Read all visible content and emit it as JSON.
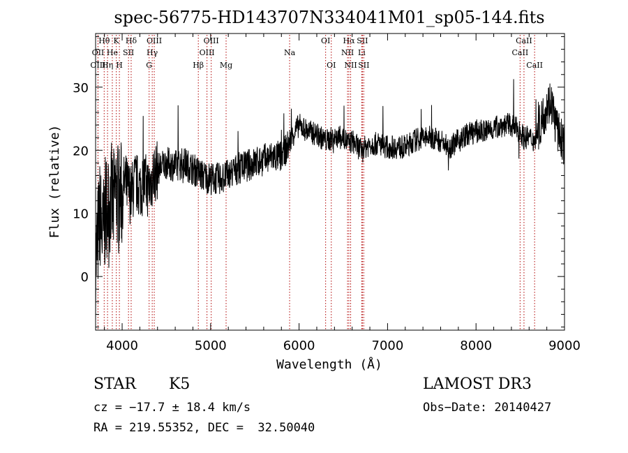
{
  "chart_data": {
    "type": "line",
    "title": "spec-56775-HD143707N334041M01_sp05-144.fits",
    "xlabel": "Wavelength (Å)",
    "ylabel": "Flux (relative)",
    "xlim": [
      3700,
      9000
    ],
    "ylim": [
      -8.5,
      38.5
    ],
    "xticks": [
      4000,
      5000,
      6000,
      7000,
      8000,
      9000
    ],
    "xtick_labels": [
      "4000",
      "5000",
      "6000",
      "7000",
      "8000",
      "9000"
    ],
    "yticks": [
      0,
      10,
      20,
      30
    ],
    "ytick_labels": [
      "0",
      "10",
      "20",
      "30"
    ],
    "grid": false,
    "series": [
      {
        "name": "spectrum",
        "x": [
          3700,
          3750,
          3780,
          3800,
          3830,
          3850,
          3870,
          3900,
          3930,
          3960,
          4000,
          4030,
          4060,
          4100,
          4150,
          4200,
          4250,
          4300,
          4350,
          4400,
          4500,
          4600,
          4700,
          4800,
          4860,
          4900,
          5000,
          5100,
          5200,
          5300,
          5400,
          5500,
          5600,
          5700,
          5800,
          5890,
          5950,
          6000,
          6100,
          6200,
          6300,
          6400,
          6500,
          6563,
          6600,
          6700,
          6800,
          6900,
          7000,
          7100,
          7200,
          7300,
          7400,
          7500,
          7600,
          7700,
          7800,
          7900,
          8000,
          8100,
          8200,
          8300,
          8400,
          8500,
          8540,
          8600,
          8662,
          8700,
          8750,
          8800,
          8850,
          8900,
          8950,
          9000
        ],
        "y": [
          2,
          10,
          6,
          9,
          12,
          10,
          13,
          11,
          14,
          12,
          13,
          15,
          14,
          13,
          15,
          14,
          15,
          14,
          16,
          17,
          18,
          17.5,
          18,
          17,
          16.5,
          16,
          15.5,
          15.5,
          16,
          17,
          17.5,
          18,
          18.5,
          19,
          19,
          21,
          23,
          24,
          23,
          22.5,
          21.5,
          22,
          22,
          21,
          21.5,
          20,
          21,
          21,
          20.5,
          20.5,
          20.5,
          21.5,
          22,
          22,
          21.5,
          20.5,
          21.5,
          22.5,
          23,
          23,
          23.5,
          24,
          24,
          23,
          22,
          22,
          21.5,
          23,
          25,
          27,
          28,
          24,
          22,
          21
        ]
      }
    ],
    "line_markers": [
      {
        "label": "Hθ",
        "wavelength": 3797,
        "row": 1
      },
      {
        "label": "K",
        "wavelength": 3934,
        "row": 1
      },
      {
        "label": "Hδ",
        "wavelength": 4102,
        "row": 1
      },
      {
        "label": "OIII",
        "wavelength": 4363,
        "row": 1
      },
      {
        "label": "OIII",
        "wavelength": 5007,
        "row": 1
      },
      {
        "label": "OI",
        "wavelength": 6300,
        "row": 1
      },
      {
        "label": "Hα",
        "wavelength": 6563,
        "row": 1
      },
      {
        "label": "SII",
        "wavelength": 6716,
        "row": 1
      },
      {
        "label": "CaII",
        "wavelength": 8542,
        "row": 1
      },
      {
        "label": "OII",
        "wavelength": 3727,
        "row": 2
      },
      {
        "label": "He",
        "wavelength": 3889,
        "row": 2
      },
      {
        "label": "SII",
        "wavelength": 4072,
        "row": 2
      },
      {
        "label": "Hγ",
        "wavelength": 4340,
        "row": 2
      },
      {
        "label": "OIII",
        "wavelength": 4959,
        "row": 2
      },
      {
        "label": "Na",
        "wavelength": 5893,
        "row": 2
      },
      {
        "label": "NII",
        "wavelength": 6548,
        "row": 2
      },
      {
        "label": "Li",
        "wavelength": 6708,
        "row": 2
      },
      {
        "label": "CaII",
        "wavelength": 8498,
        "row": 2
      },
      {
        "label": "OIII",
        "wavelength": 3727,
        "row": 3
      },
      {
        "label": "Hη",
        "wavelength": 3835,
        "row": 3
      },
      {
        "label": "H",
        "wavelength": 3969,
        "row": 3
      },
      {
        "label": "G",
        "wavelength": 4305,
        "row": 3
      },
      {
        "label": "Hβ",
        "wavelength": 4861,
        "row": 3
      },
      {
        "label": "Mg",
        "wavelength": 5175,
        "row": 3
      },
      {
        "label": "OI",
        "wavelength": 6364,
        "row": 3
      },
      {
        "label": "NII",
        "wavelength": 6583,
        "row": 3
      },
      {
        "label": "SII",
        "wavelength": 6731,
        "row": 3
      },
      {
        "label": "CaII",
        "wavelength": 8662,
        "row": 3
      }
    ]
  },
  "info": {
    "class": "STAR",
    "subclass": "K5",
    "survey": "LAMOST DR3",
    "cz": "cz = −17.7 ± 18.4 km/s",
    "obs_date": "Obs−Date: 20140427",
    "coords": "RA = 219.55352, DEC =  32.50040"
  }
}
